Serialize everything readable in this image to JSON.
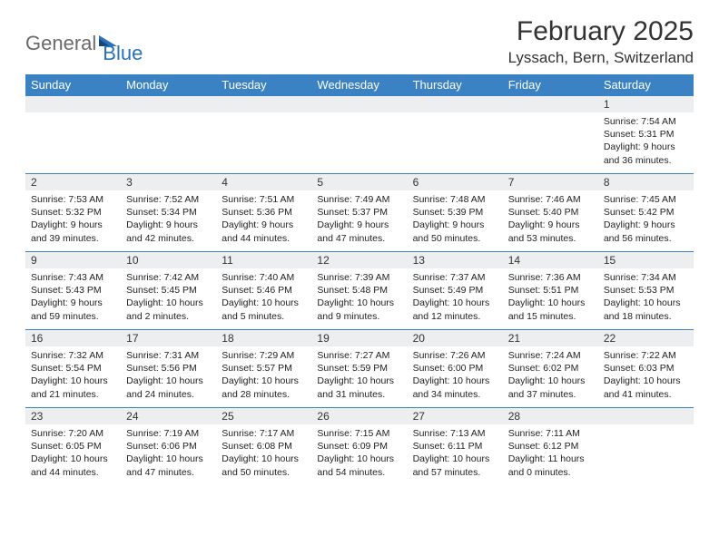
{
  "brand": {
    "part1": "General",
    "part2": "Blue"
  },
  "title": "February 2025",
  "location": "Lyssach, Bern, Switzerland",
  "colors": {
    "header_bg": "#3b82c4",
    "header_fg": "#ffffff",
    "daynum_bg": "#eceeef",
    "rule": "#3b82c4",
    "brand_gray": "#6a6a6a",
    "brand_blue": "#2a72b5"
  },
  "weekdays": [
    "Sunday",
    "Monday",
    "Tuesday",
    "Wednesday",
    "Thursday",
    "Friday",
    "Saturday"
  ],
  "grid": [
    [
      {
        "empty": true
      },
      {
        "empty": true
      },
      {
        "empty": true
      },
      {
        "empty": true
      },
      {
        "empty": true
      },
      {
        "empty": true
      },
      {
        "n": "1",
        "sunrise": "7:54 AM",
        "sunset": "5:31 PM",
        "daylight": "9 hours and 36 minutes."
      }
    ],
    [
      {
        "n": "2",
        "sunrise": "7:53 AM",
        "sunset": "5:32 PM",
        "daylight": "9 hours and 39 minutes."
      },
      {
        "n": "3",
        "sunrise": "7:52 AM",
        "sunset": "5:34 PM",
        "daylight": "9 hours and 42 minutes."
      },
      {
        "n": "4",
        "sunrise": "7:51 AM",
        "sunset": "5:36 PM",
        "daylight": "9 hours and 44 minutes."
      },
      {
        "n": "5",
        "sunrise": "7:49 AM",
        "sunset": "5:37 PM",
        "daylight": "9 hours and 47 minutes."
      },
      {
        "n": "6",
        "sunrise": "7:48 AM",
        "sunset": "5:39 PM",
        "daylight": "9 hours and 50 minutes."
      },
      {
        "n": "7",
        "sunrise": "7:46 AM",
        "sunset": "5:40 PM",
        "daylight": "9 hours and 53 minutes."
      },
      {
        "n": "8",
        "sunrise": "7:45 AM",
        "sunset": "5:42 PM",
        "daylight": "9 hours and 56 minutes."
      }
    ],
    [
      {
        "n": "9",
        "sunrise": "7:43 AM",
        "sunset": "5:43 PM",
        "daylight": "9 hours and 59 minutes."
      },
      {
        "n": "10",
        "sunrise": "7:42 AM",
        "sunset": "5:45 PM",
        "daylight": "10 hours and 2 minutes."
      },
      {
        "n": "11",
        "sunrise": "7:40 AM",
        "sunset": "5:46 PM",
        "daylight": "10 hours and 5 minutes."
      },
      {
        "n": "12",
        "sunrise": "7:39 AM",
        "sunset": "5:48 PM",
        "daylight": "10 hours and 9 minutes."
      },
      {
        "n": "13",
        "sunrise": "7:37 AM",
        "sunset": "5:49 PM",
        "daylight": "10 hours and 12 minutes."
      },
      {
        "n": "14",
        "sunrise": "7:36 AM",
        "sunset": "5:51 PM",
        "daylight": "10 hours and 15 minutes."
      },
      {
        "n": "15",
        "sunrise": "7:34 AM",
        "sunset": "5:53 PM",
        "daylight": "10 hours and 18 minutes."
      }
    ],
    [
      {
        "n": "16",
        "sunrise": "7:32 AM",
        "sunset": "5:54 PM",
        "daylight": "10 hours and 21 minutes."
      },
      {
        "n": "17",
        "sunrise": "7:31 AM",
        "sunset": "5:56 PM",
        "daylight": "10 hours and 24 minutes."
      },
      {
        "n": "18",
        "sunrise": "7:29 AM",
        "sunset": "5:57 PM",
        "daylight": "10 hours and 28 minutes."
      },
      {
        "n": "19",
        "sunrise": "7:27 AM",
        "sunset": "5:59 PM",
        "daylight": "10 hours and 31 minutes."
      },
      {
        "n": "20",
        "sunrise": "7:26 AM",
        "sunset": "6:00 PM",
        "daylight": "10 hours and 34 minutes."
      },
      {
        "n": "21",
        "sunrise": "7:24 AM",
        "sunset": "6:02 PM",
        "daylight": "10 hours and 37 minutes."
      },
      {
        "n": "22",
        "sunrise": "7:22 AM",
        "sunset": "6:03 PM",
        "daylight": "10 hours and 41 minutes."
      }
    ],
    [
      {
        "n": "23",
        "sunrise": "7:20 AM",
        "sunset": "6:05 PM",
        "daylight": "10 hours and 44 minutes."
      },
      {
        "n": "24",
        "sunrise": "7:19 AM",
        "sunset": "6:06 PM",
        "daylight": "10 hours and 47 minutes."
      },
      {
        "n": "25",
        "sunrise": "7:17 AM",
        "sunset": "6:08 PM",
        "daylight": "10 hours and 50 minutes."
      },
      {
        "n": "26",
        "sunrise": "7:15 AM",
        "sunset": "6:09 PM",
        "daylight": "10 hours and 54 minutes."
      },
      {
        "n": "27",
        "sunrise": "7:13 AM",
        "sunset": "6:11 PM",
        "daylight": "10 hours and 57 minutes."
      },
      {
        "n": "28",
        "sunrise": "7:11 AM",
        "sunset": "6:12 PM",
        "daylight": "11 hours and 0 minutes."
      },
      {
        "empty": true
      }
    ]
  ],
  "labels": {
    "sunrise": "Sunrise:",
    "sunset": "Sunset:",
    "daylight": "Daylight:"
  }
}
